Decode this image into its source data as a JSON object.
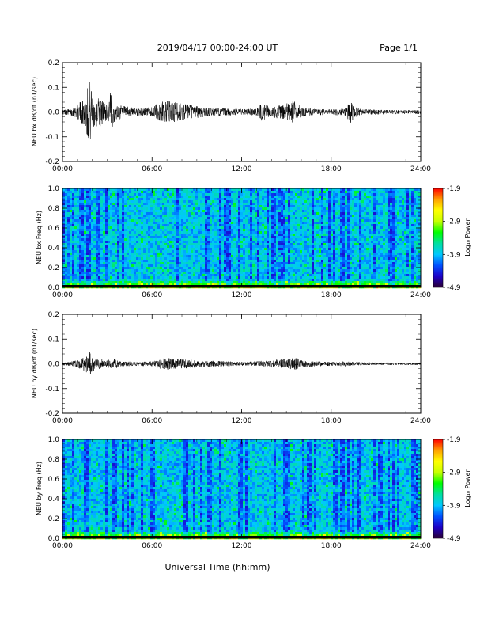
{
  "header": {
    "date_range": "2019/04/17  00:00-24:00 UT",
    "page": "Page 1/1"
  },
  "x_axis": {
    "label": "Universal Time (hh:mm)",
    "ticks": [
      "00:00",
      "06:00",
      "12:00",
      "18:00",
      "24:00"
    ]
  },
  "colorbar": {
    "label": "Log₁₀ Power",
    "ticks": [
      "-1.9",
      "-2.9",
      "-3.9",
      "-4.9"
    ],
    "range": [
      -4.9,
      -1.9
    ],
    "colors": [
      "#2a0030",
      "#1e00c8",
      "#0050ff",
      "#00c8ff",
      "#00e0a0",
      "#00ff00",
      "#c8ff00",
      "#ffff00",
      "#ffa000",
      "#ff0000"
    ]
  },
  "chart_data": [
    {
      "type": "line",
      "ylabel": "NEU bx dB/dt (nT/sec)",
      "ylim": [
        -0.2,
        0.2
      ],
      "yticks": [
        "0.2",
        "0.1",
        "0.0",
        "-0.1",
        "-0.2"
      ],
      "xlim_hours": [
        0,
        24
      ],
      "series_color": "#000000",
      "envelope_hours": [
        0,
        0.5,
        1.0,
        1.5,
        1.8,
        2.0,
        2.5,
        3.0,
        3.2,
        3.5,
        4.0,
        5.0,
        6.0,
        6.5,
        7.0,
        8.0,
        9.0,
        9.5,
        10.0,
        11.0,
        12.0,
        13.0,
        13.3,
        14.0,
        15.0,
        15.5,
        16.0,
        17.0,
        18.0,
        19.0,
        19.3,
        19.5,
        20.0,
        21.0,
        22.0,
        24.0
      ],
      "envelope_amplitude": [
        0.01,
        0.012,
        0.03,
        0.06,
        0.14,
        0.07,
        0.06,
        0.03,
        0.08,
        0.04,
        0.025,
        0.015,
        0.02,
        0.04,
        0.05,
        0.035,
        0.025,
        0.02,
        0.015,
        0.015,
        0.012,
        0.015,
        0.035,
        0.02,
        0.035,
        0.045,
        0.02,
        0.012,
        0.012,
        0.015,
        0.05,
        0.025,
        0.012,
        0.01,
        0.008,
        0.008
      ]
    },
    {
      "type": "heatmap",
      "ylabel": "NEU bx Freq (Hz)",
      "ylim": [
        0.0,
        1.0
      ],
      "yticks": [
        "1.0",
        "0.8",
        "0.6",
        "0.4",
        "0.2",
        "0.0"
      ],
      "xlim_hours": [
        0,
        24
      ],
      "zlim": [
        -4.9,
        -1.9
      ]
    },
    {
      "type": "line",
      "ylabel": "NEU by dB/dt (nT/sec)",
      "ylim": [
        -0.2,
        0.2
      ],
      "yticks": [
        "0.2",
        "0.1",
        "0.0",
        "-0.1",
        "-0.2"
      ],
      "xlim_hours": [
        0,
        24
      ],
      "series_color": "#000000",
      "envelope_hours": [
        0,
        0.5,
        1.0,
        1.5,
        1.8,
        2.0,
        2.5,
        3.0,
        3.5,
        4.0,
        5.0,
        6.0,
        6.5,
        7.0,
        8.0,
        9.0,
        10.0,
        11.0,
        12.0,
        13.0,
        14.0,
        15.0,
        15.5,
        16.0,
        17.0,
        18.0,
        19.0,
        20.0,
        22.0,
        24.0
      ],
      "envelope_amplitude": [
        0.006,
        0.008,
        0.015,
        0.03,
        0.07,
        0.03,
        0.02,
        0.015,
        0.02,
        0.01,
        0.008,
        0.01,
        0.02,
        0.025,
        0.02,
        0.015,
        0.012,
        0.01,
        0.008,
        0.01,
        0.015,
        0.02,
        0.03,
        0.015,
        0.01,
        0.008,
        0.01,
        0.006,
        0.005,
        0.005
      ]
    },
    {
      "type": "heatmap",
      "ylabel": "NEU by Freq (Hz)",
      "ylim": [
        0.0,
        1.0
      ],
      "yticks": [
        "1.0",
        "0.8",
        "0.6",
        "0.4",
        "0.2",
        "0.0"
      ],
      "xlim_hours": [
        0,
        24
      ],
      "zlim": [
        -4.9,
        -1.9
      ]
    }
  ]
}
